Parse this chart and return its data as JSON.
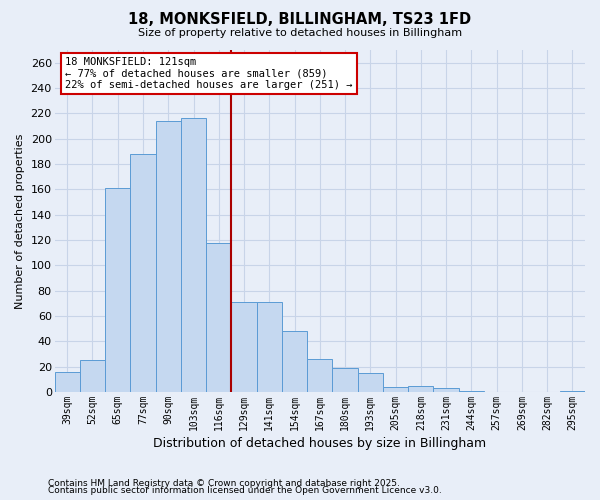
{
  "title": "18, MONKSFIELD, BILLINGHAM, TS23 1FD",
  "subtitle": "Size of property relative to detached houses in Billingham",
  "xlabel": "Distribution of detached houses by size in Billingham",
  "ylabel": "Number of detached properties",
  "bar_color": "#c5d8f0",
  "bar_edge_color": "#5b9bd5",
  "background_color": "#e8eef8",
  "grid_color": "#c8d4e8",
  "categories": [
    "39sqm",
    "52sqm",
    "65sqm",
    "77sqm",
    "90sqm",
    "103sqm",
    "116sqm",
    "129sqm",
    "141sqm",
    "154sqm",
    "167sqm",
    "180sqm",
    "193sqm",
    "205sqm",
    "218sqm",
    "231sqm",
    "244sqm",
    "257sqm",
    "269sqm",
    "282sqm",
    "295sqm"
  ],
  "values": [
    16,
    25,
    161,
    188,
    214,
    216,
    118,
    71,
    71,
    48,
    26,
    19,
    15,
    4,
    5,
    3,
    1,
    0,
    0,
    0,
    1
  ],
  "ylim": [
    0,
    270
  ],
  "yticks": [
    0,
    20,
    40,
    60,
    80,
    100,
    120,
    140,
    160,
    180,
    200,
    220,
    240,
    260
  ],
  "vline_color": "#aa0000",
  "annotation_title": "18 MONKSFIELD: 121sqm",
  "annotation_line1": "← 77% of detached houses are smaller (859)",
  "annotation_line2": "22% of semi-detached houses are larger (251) →",
  "annotation_box_color": "#ffffff",
  "annotation_box_edge": "#cc0000",
  "footer1": "Contains HM Land Registry data © Crown copyright and database right 2025.",
  "footer2": "Contains public sector information licensed under the Open Government Licence v3.0."
}
